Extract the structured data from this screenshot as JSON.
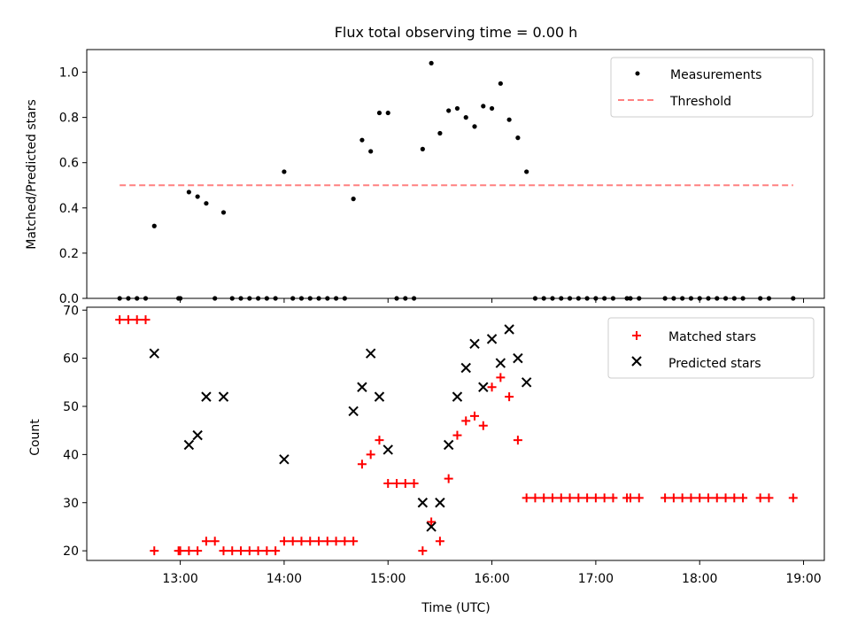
{
  "chart_data": [
    {
      "type": "scatter",
      "title": "Flux total observing time = 0.00 h",
      "xlabel": "",
      "ylabel": "Matched/Predicted stars",
      "xlim": [
        "12:06",
        "19:12"
      ],
      "ylim": [
        0,
        1.1
      ],
      "yticks": [
        "0.0",
        "0.2",
        "0.4",
        "0.6",
        "0.8",
        "1.0"
      ],
      "legend_position": "top-right",
      "grid": false,
      "series": [
        {
          "name": "Measurements",
          "color": "#000000",
          "marker": "dot",
          "x": [
            "12:25",
            "12:30",
            "12:35",
            "12:40",
            "12:45",
            "12:59",
            "13:00",
            "13:05",
            "13:10",
            "13:15",
            "13:20",
            "13:25",
            "13:30",
            "13:35",
            "13:40",
            "13:45",
            "13:50",
            "13:55",
            "14:00",
            "14:05",
            "14:10",
            "14:15",
            "14:20",
            "14:25",
            "14:30",
            "14:35",
            "14:40",
            "14:45",
            "14:50",
            "14:55",
            "15:00",
            "15:05",
            "15:10",
            "15:15",
            "15:20",
            "15:25",
            "15:30",
            "15:35",
            "15:40",
            "15:45",
            "15:50",
            "15:55",
            "16:00",
            "16:05",
            "16:10",
            "16:15",
            "16:20",
            "16:25",
            "16:30",
            "16:35",
            "16:40",
            "16:45",
            "16:50",
            "16:55",
            "17:00",
            "17:05",
            "17:10",
            "17:18",
            "17:20",
            "17:25",
            "17:40",
            "17:45",
            "17:50",
            "17:55",
            "18:00",
            "18:05",
            "18:10",
            "18:15",
            "18:20",
            "18:25",
            "18:35",
            "18:40",
            "18:54"
          ],
          "y": [
            0,
            0,
            0,
            0,
            0.32,
            0,
            0,
            0.47,
            0.45,
            0.42,
            0,
            0.38,
            0,
            0,
            0,
            0,
            0,
            0,
            0.56,
            0,
            0,
            0,
            0,
            0,
            0,
            0,
            0.44,
            0.7,
            0.65,
            0.82,
            0.82,
            0,
            0,
            0,
            0.66,
            1.04,
            0.73,
            0.83,
            0.84,
            0.8,
            0.76,
            0.85,
            0.84,
            0.95,
            0.79,
            0.71,
            0.56,
            0,
            0,
            0,
            0,
            0,
            0,
            0,
            0,
            0,
            0,
            0,
            0,
            0,
            0,
            0,
            0,
            0,
            0,
            0,
            0,
            0,
            0,
            0,
            0,
            0,
            0
          ]
        },
        {
          "name": "Threshold",
          "color": "#ff8080",
          "style": "dashed",
          "x": [
            "12:25",
            "18:54"
          ],
          "y": [
            0.5,
            0.5
          ]
        }
      ]
    },
    {
      "type": "scatter",
      "title": "",
      "xlabel": "Time (UTC)",
      "ylabel": "Count",
      "xlim": [
        "12:06",
        "19:12"
      ],
      "ylim": [
        18,
        70.6
      ],
      "xticks": [
        "13:00",
        "14:00",
        "15:00",
        "16:00",
        "17:00",
        "18:00",
        "19:00"
      ],
      "yticks": [
        "20",
        "30",
        "40",
        "50",
        "60",
        "70"
      ],
      "legend_position": "top-right",
      "grid": false,
      "series": [
        {
          "name": "Matched stars",
          "color": "#ff0000",
          "marker": "plus",
          "x": [
            "12:25",
            "12:30",
            "12:35",
            "12:40",
            "12:45",
            "12:59",
            "13:00",
            "13:05",
            "13:10",
            "13:15",
            "13:20",
            "13:25",
            "13:30",
            "13:35",
            "13:40",
            "13:45",
            "13:50",
            "13:55",
            "14:00",
            "14:05",
            "14:10",
            "14:15",
            "14:20",
            "14:25",
            "14:30",
            "14:35",
            "14:40",
            "14:45",
            "14:50",
            "14:55",
            "15:00",
            "15:05",
            "15:10",
            "15:15",
            "15:20",
            "15:25",
            "15:30",
            "15:35",
            "15:40",
            "15:45",
            "15:50",
            "15:55",
            "16:00",
            "16:05",
            "16:10",
            "16:15",
            "16:20",
            "16:25",
            "16:30",
            "16:35",
            "16:40",
            "16:45",
            "16:50",
            "16:55",
            "17:00",
            "17:05",
            "17:10",
            "17:18",
            "17:20",
            "17:25",
            "17:40",
            "17:45",
            "17:50",
            "17:55",
            "18:00",
            "18:05",
            "18:10",
            "18:15",
            "18:20",
            "18:25",
            "18:35",
            "18:40",
            "18:54"
          ],
          "y": [
            68,
            68,
            68,
            68,
            20,
            20,
            20,
            20,
            20,
            22,
            22,
            20,
            20,
            20,
            20,
            20,
            20,
            20,
            22,
            22,
            22,
            22,
            22,
            22,
            22,
            22,
            22,
            38,
            40,
            43,
            34,
            34,
            34,
            34,
            20,
            26,
            22,
            35,
            44,
            47,
            48,
            46,
            54,
            56,
            52,
            43,
            31,
            31,
            31,
            31,
            31,
            31,
            31,
            31,
            31,
            31,
            31,
            31,
            31,
            31,
            31,
            31,
            31,
            31,
            31,
            31,
            31,
            31,
            31,
            31,
            31,
            31,
            31
          ]
        },
        {
          "name": "Predicted stars",
          "color": "#000000",
          "marker": "cross",
          "x": [
            "12:45",
            "13:05",
            "13:10",
            "13:15",
            "13:25",
            "14:00",
            "14:40",
            "14:45",
            "14:50",
            "14:55",
            "15:00",
            "15:20",
            "15:25",
            "15:30",
            "15:35",
            "15:40",
            "15:45",
            "15:50",
            "15:55",
            "16:00",
            "16:05",
            "16:10",
            "16:15",
            "16:20"
          ],
          "y": [
            61,
            42,
            44,
            52,
            52,
            39,
            49,
            54,
            61,
            52,
            41,
            30,
            25,
            30,
            42,
            52,
            58,
            63,
            54,
            64,
            59,
            66,
            60,
            55
          ]
        }
      ]
    }
  ]
}
